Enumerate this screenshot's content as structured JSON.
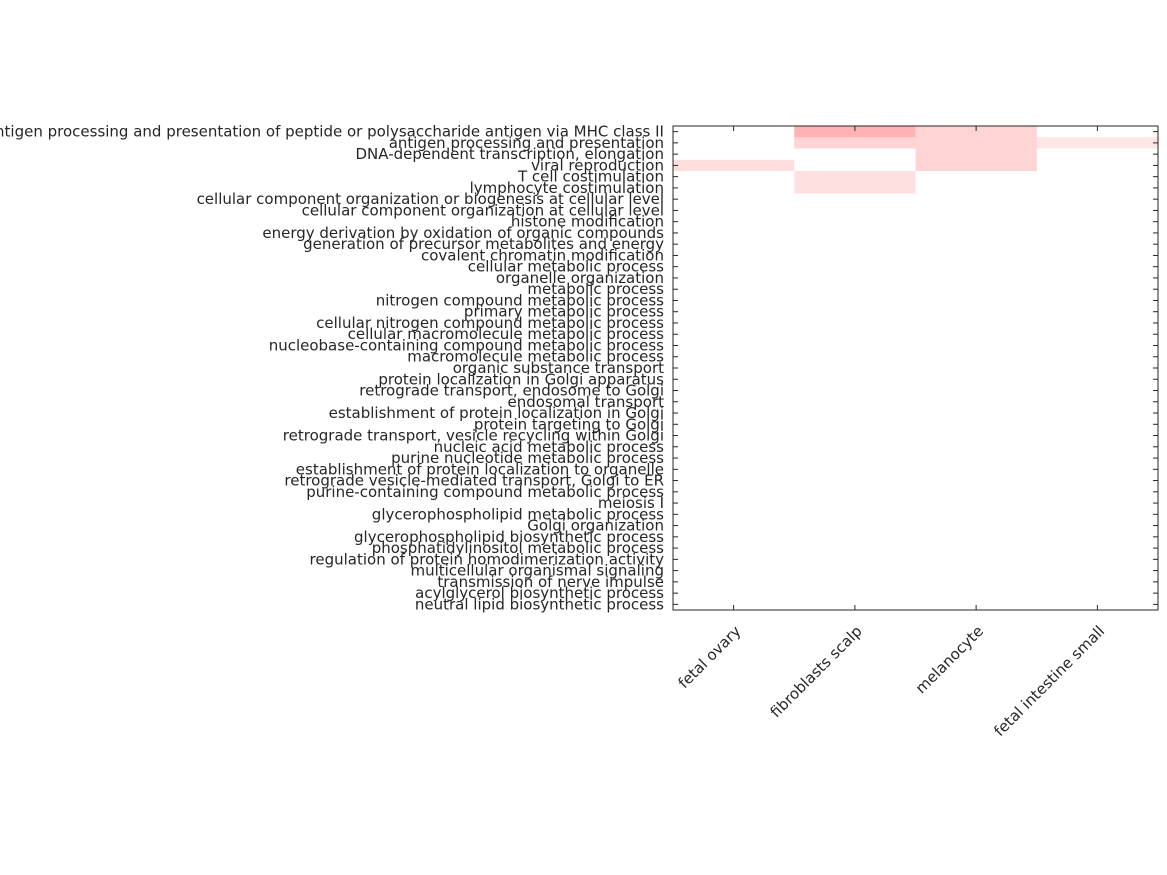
{
  "chart_data": {
    "type": "heatmap",
    "columns": [
      "fetal ovary",
      "fibroblasts scalp",
      "melanocyte",
      "fetal intestine small"
    ],
    "rows": [
      "antigen processing and presentation of peptide or polysaccharide antigen via MHC class II",
      "antigen processing and presentation",
      "DNA-dependent transcription, elongation",
      "viral reproduction",
      "T cell costimulation",
      "lymphocyte costimulation",
      "cellular component organization or biogenesis at cellular level",
      "cellular component organization at cellular level",
      "histone modification",
      "energy derivation by oxidation of organic compounds",
      "generation of precursor metabolites and energy",
      "covalent chromatin modification",
      "cellular metabolic process",
      "organelle organization",
      "metabolic process",
      "nitrogen compound metabolic process",
      "primary metabolic process",
      "cellular nitrogen compound metabolic process",
      "cellular macromolecule metabolic process",
      "nucleobase-containing compound metabolic process",
      "macromolecule metabolic process",
      "organic substance transport",
      "protein localization in Golgi apparatus",
      "retrograde transport, endosome to Golgi",
      "endosomal transport",
      "establishment of protein localization in Golgi",
      "protein targeting to Golgi",
      "retrograde transport, vesicle recycling within Golgi",
      "nucleic acid metabolic process",
      "purine nucleotide metabolic process",
      "establishment of protein localization to organelle",
      "retrograde vesicle-mediated transport, Golgi to ER",
      "purine-containing compound metabolic process",
      "meiosis I",
      "glycerophospholipid metabolic process",
      "Golgi organization",
      "glycerophospholipid biosynthetic process",
      "phosphatidylinositol metabolic process",
      "regulation of protein homodimerization activity",
      "multicellular organismal signaling",
      "transmission of nerve impulse",
      "acylglycerol biosynthetic process",
      "neutral lipid biosynthetic process"
    ],
    "values": [
      [
        0,
        0.3,
        0.17,
        0
      ],
      [
        0,
        0.17,
        0.17,
        0.1
      ],
      [
        0,
        0,
        0.17,
        0
      ],
      [
        0.13,
        0,
        0.17,
        0
      ],
      [
        0,
        0.12,
        0,
        0
      ],
      [
        0,
        0.12,
        0,
        0
      ],
      [
        0,
        0,
        0,
        0
      ],
      [
        0,
        0,
        0,
        0
      ],
      [
        0,
        0,
        0,
        0
      ],
      [
        0,
        0,
        0,
        0
      ],
      [
        0,
        0,
        0,
        0
      ],
      [
        0,
        0,
        0,
        0
      ],
      [
        0,
        0,
        0,
        0
      ],
      [
        0,
        0,
        0,
        0
      ],
      [
        0,
        0,
        0,
        0
      ],
      [
        0,
        0,
        0,
        0
      ],
      [
        0,
        0,
        0,
        0
      ],
      [
        0,
        0,
        0,
        0
      ],
      [
        0,
        0,
        0,
        0
      ],
      [
        0,
        0,
        0,
        0
      ],
      [
        0,
        0,
        0,
        0
      ],
      [
        0,
        0,
        0,
        0
      ],
      [
        0,
        0,
        0,
        0
      ],
      [
        0,
        0,
        0,
        0
      ],
      [
        0,
        0,
        0,
        0
      ],
      [
        0,
        0,
        0,
        0
      ],
      [
        0,
        0,
        0,
        0
      ],
      [
        0,
        0,
        0,
        0
      ],
      [
        0,
        0,
        0,
        0
      ],
      [
        0,
        0,
        0,
        0
      ],
      [
        0,
        0,
        0,
        0
      ],
      [
        0,
        0,
        0,
        0
      ],
      [
        0,
        0,
        0,
        0
      ],
      [
        0,
        0,
        0,
        0
      ],
      [
        0,
        0,
        0,
        0
      ],
      [
        0,
        0,
        0,
        0
      ],
      [
        0,
        0,
        0,
        0
      ],
      [
        0,
        0,
        0,
        0
      ],
      [
        0,
        0,
        0,
        0
      ],
      [
        0,
        0,
        0,
        0
      ],
      [
        0,
        0,
        0,
        0
      ],
      [
        0,
        0,
        0,
        0
      ],
      [
        0,
        0,
        0,
        0
      ]
    ],
    "zlim": [
      0,
      1
    ],
    "colormap": [
      "#ffffff",
      "#ff0000"
    ]
  }
}
